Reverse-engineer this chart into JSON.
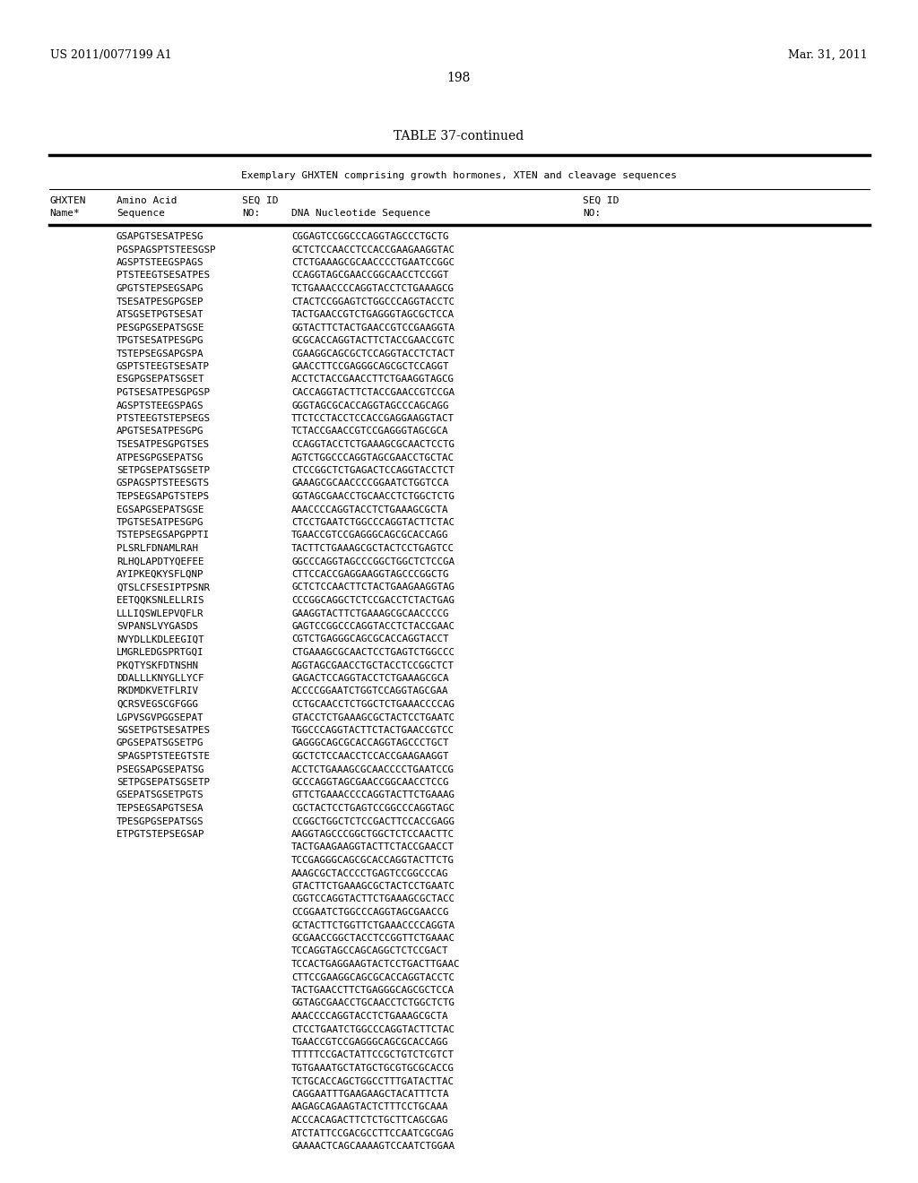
{
  "patent_left": "US 2011/0077199 A1",
  "patent_right": "Mar. 31, 2011",
  "page_number": "198",
  "table_title": "TABLE 37-continued",
  "table_subtitle": "Exemplary GHXTEN comprising growth hormones, XTEN and cleavage sequences",
  "rows": [
    [
      "GSAPGTSESATPESG",
      "CGGAGTCCGGCCCAGGTAGCCCTGCTG"
    ],
    [
      "PGSPAGSPTSTEESGSP",
      "GCTCTCCAACCTCCACCGAAGAAGGTAC"
    ],
    [
      "AGSPTSTEEGSPAGS",
      "CTCTGAAAGCGCAACCCCTGAATCCGGC"
    ],
    [
      "PTSTEEGTSESATPES",
      "CCAGGTAGCGAACCGGCAACCTCCGGT"
    ],
    [
      "GPGTSTEPSEGSAPG",
      "TCTGAAACCCCAGGTACCTCTGAAAGCG"
    ],
    [
      "TSESATPESGPGSEP",
      "CTACTCCGGAGTCTGGCCCAGGTACCTC"
    ],
    [
      "ATSGSETPGTSESAT",
      "TACTGAACCGTCTGAGGGTAGCGCTCCA"
    ],
    [
      "PESGPGSEPATSGSE",
      "GGTACTTCTACTGAACCGTCCGAAGGTA"
    ],
    [
      "TPGTSESATPESGPG",
      "GCGCACCAGGTACTTCTACCGAACCGTC"
    ],
    [
      "TSTEPSEGSAPGSPA",
      "CGAAGGCAGCGCTCCAGGTACCTCTACT"
    ],
    [
      "GSPTSTEEGTSESATP",
      "GAACCTTCCGAGGGCAGCGCTCCAGGT"
    ],
    [
      "ESGPGSEPATSGSET",
      "ACCTCTACCGAACCTTCTGAAGGTAGCG"
    ],
    [
      "PGTSESATPESGPGSP",
      "CACCAGGTACTTCTACCGAACCGTCCGA"
    ],
    [
      "AGSPTSTEEGSPAGS",
      "GGGTAGCGCACCAGGTAGCCCAGCAGG"
    ],
    [
      "PTSTEEGTSTEPSEGS",
      "TTCTCCTACCTCCACCGAGGAAGGTACT"
    ],
    [
      "APGTSESATPESGPG",
      "TCTACCGAACCGTCCGAGGGTAGCGCA"
    ],
    [
      "TSESATPESGPGTSES",
      "CCAGGTACCTCTGAAAGCGCAACTCCTG"
    ],
    [
      "ATPESGPGSEPATSG",
      "AGTCTGGCCCAGGTAGCGAACCTGCTAC"
    ],
    [
      "SETPGSEPATSGSETP",
      "CTCCGGCTCTGAGACTCCAGGTACCTCT"
    ],
    [
      "GSPAGSPTSTEESGTS",
      "GAAAGCGCAACCCCGGAATCTGGTCCA"
    ],
    [
      "TEPSEGSAPGTSTEPS",
      "GGTAGCGAACCTGCAACCTCTGGCTCTG"
    ],
    [
      "EGSAPGSEPATSGSE",
      "AAACCCCAGGTACCTCTGAAAGCGCTA"
    ],
    [
      "TPGTSESATPESGPG",
      "CTCCTGAATCTGGCCCAGGTACTTCTAC"
    ],
    [
      "TSTEPSEGSAPGPPTI",
      "TGAACCGTCCGAGGGCAGCGCACCAGG"
    ],
    [
      "PLSRLFDNAMLRAH",
      "TACTTCTGAAAGCGCTACTCCTGAGTCC"
    ],
    [
      "RLHQLAPDTYQEFEE",
      "GGCCCAGGTAGCCCGGCTGGCTCTCCGA"
    ],
    [
      "AYIPKEQKYSFLQNP",
      "CTTCCACCGAGGAAGGTAGCCCGGCTG"
    ],
    [
      "QTSLCFSESIPTPSNR",
      "GCTCTCCAACTTCTACTGAAGAAGGTAG"
    ],
    [
      "EETQQKSNLELLRIS",
      "CCCGGCAGGCTCTCCGACCTCTACTGAG"
    ],
    [
      "LLLIQSWLEPVQFLR",
      "GAAGGTACTTCTGAAAGCGCAACCCCG"
    ],
    [
      "SVPANSLVYGASDS",
      "GAGTCCGGCCCAGGTACCTCTACCGAAC"
    ],
    [
      "NVYDLLKDLEEGIQT",
      "CGTCTGAGGGCAGCGCACCAGGTACCT"
    ],
    [
      "LMGRLEDGSPRTGQI",
      "CTGAAAGCGCAACTCCTGAGTCTGGCCC"
    ],
    [
      "PKQTYSKFDTNSHN",
      "AGGTAGCGAACCTGCTACCTCCGGCTCT"
    ],
    [
      "DDALLLKNYGLLYCF",
      "GAGACTCCAGGTACCTCTGAAAGCGCA"
    ],
    [
      "RKDMDKVETFLRIV",
      "ACCCCGGAATCTGGTCCAGGTAGCGAA"
    ],
    [
      "QCRSVEGSCGFGGG",
      "CCTGCAACCTCTGGCTCTGAAACCCCAG"
    ],
    [
      "LGPVSGVPGGSEPAT",
      "GTACCTCTGAAAGCGCTACTCCTGAATC"
    ],
    [
      "SGSETPGTSESATPES",
      "TGGCCCAGGTACTTCTACTGAACCGTCC"
    ],
    [
      "GPGSEPATSGSETPG",
      "GAGGGCAGCGCACCAGGTAGCCCTGCT"
    ],
    [
      "SPAGSPTSTEEGTSTE",
      "GGCTCTCCAACCTCCACCGAAGAAGGT"
    ],
    [
      "PSEGSAPGSEPATSG",
      "ACCTCTGAAAGCGCAACCCCTGAATCCG"
    ],
    [
      "SETPGSEPATSGSETP",
      "GCCCAGGTAGCGAACCGGCAACCTCCG"
    ],
    [
      "GSEPATSGSETPGTS",
      "GTTCTGAAACCCCAGGTACTTCTGAAAG"
    ],
    [
      "TEPSEGSAPGTSESA",
      "CGCTACTCCTGAGTCCGGCCCAGGTAGC"
    ],
    [
      "TPESGPGSEPATSGS",
      "CCGGCTGGCTCTCCGACTTCCACCGAGG"
    ],
    [
      "ETPGTSTEPSEGSAP",
      "AAGGTAGCCCGGCTGGCTCTCCAACTTC"
    ],
    [
      "",
      "TACTGAAGAAGGTACTTCTACCGAACCT"
    ],
    [
      "",
      "TCCGAGGGCAGCGCACCAGGTACTTCTG"
    ],
    [
      "",
      "AAAGCGCTACCCCTGAGTCCGGCCCAG"
    ],
    [
      "",
      "GTACTTCTGAAAGCGCTACTCCTGAATC"
    ],
    [
      "",
      "CGGTCCAGGTACTTCTGAAAGCGCTACC"
    ],
    [
      "",
      "CCGGAATCTGGCCCAGGTAGCGAACCG"
    ],
    [
      "",
      "GCTACTTCTGGTTCTGAAACCCCAGGTA"
    ],
    [
      "",
      "GCGAACCGGCTACCTCCGGTTCTGAAAC"
    ],
    [
      "",
      "TCCAGGTAGCCAGCAGGCTCTCCGACT"
    ],
    [
      "",
      "TCCACTGAGGAAGTACTCCTGACTTGAAC"
    ],
    [
      "",
      "CTTCCGAAGGCAGCGCACCAGGTACCTC"
    ],
    [
      "",
      "TACTGAACCTTCTGAGGGCAGCGCTCCA"
    ],
    [
      "",
      "GGTAGCGAACCTGCAACCTCTGGCTCTG"
    ],
    [
      "",
      "AAACCCCAGGTACCTCTGAAAGCGCTA"
    ],
    [
      "",
      "CTCCTGAATCTGGCCCAGGTACTTCTAC"
    ],
    [
      "",
      "TGAACCGTCCGAGGGCAGCGCACCAGG"
    ],
    [
      "",
      "TTTTTCCGACTATTCCGCTGTCTCGTCT"
    ],
    [
      "",
      "TGTGAAATGCTATGCTGCGTGCGCACCG"
    ],
    [
      "",
      "TCTGCACCAGCTGGCCTTTGATACTTAC"
    ],
    [
      "",
      "CAGGAATTTGAAGAAGCTACATTTCTA"
    ],
    [
      "",
      "AAGAGCAGAAGTACTCTTTCCTGCAAA"
    ],
    [
      "",
      "ACCCACAGACTTCTCTGCTTCAGCGAG"
    ],
    [
      "",
      "ATCTATTCCGACGCCTTCCAATCGCGAG"
    ],
    [
      "",
      "GAAAACTCAGCAAAAGTCCAATCTGGAA"
    ]
  ],
  "background_color": "#ffffff",
  "text_color": "#000000"
}
